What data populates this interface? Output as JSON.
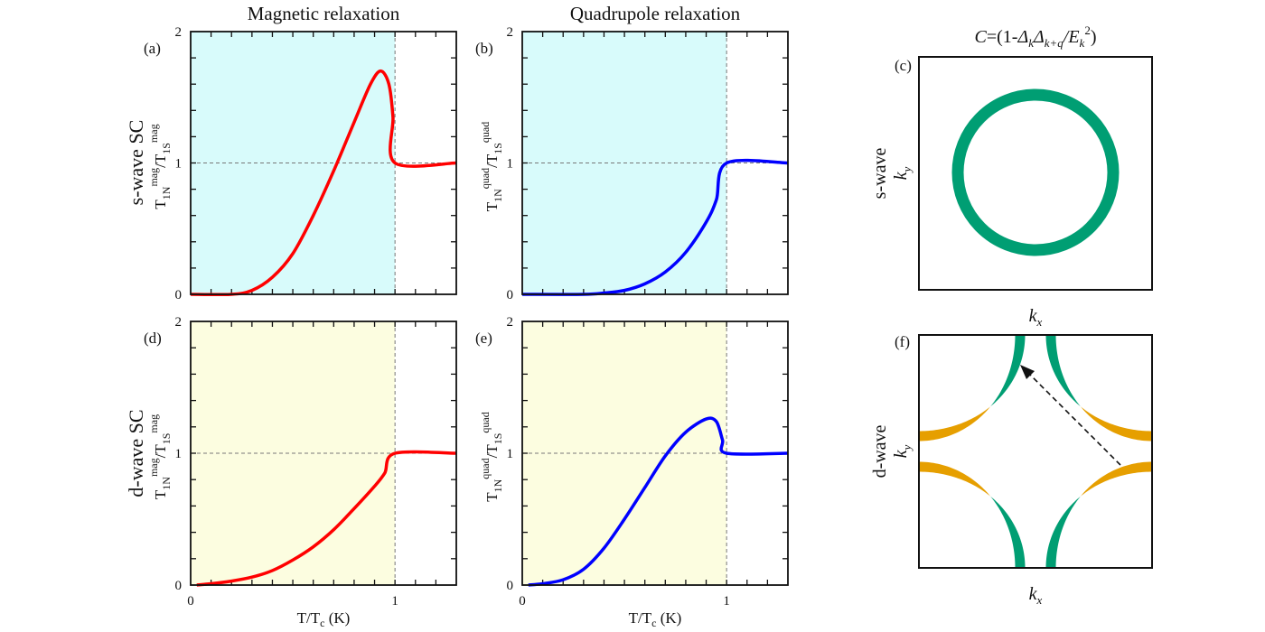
{
  "colors": {
    "s_bg": "#d8fbfb",
    "d_bg": "#fcfde0",
    "red": "#ff0000",
    "blue": "#0000ff",
    "green": "#009e73",
    "orange": "#e69f00"
  },
  "column_titles": [
    "Magnetic relaxation",
    "Quadrupole relaxation"
  ],
  "row_labels": [
    "s-wave SC",
    "d-wave SC"
  ],
  "right_title": {
    "c": "C",
    "eq": "=(1-",
    "d1": "Δ",
    "k1": "k",
    "d2": "Δ",
    "k2": "k+q",
    "sl": "/E",
    "k3": "k",
    "sq": "2",
    "close": ")"
  },
  "xlabel": {
    "a": "T/T",
    "sub": "c",
    "b": " (K)"
  },
  "right_panels": {
    "c": {
      "label": "(c)",
      "row": "s-wave",
      "ky": "k",
      "ky_sub": "y",
      "kx": "k",
      "kx_sub": "x"
    },
    "f": {
      "label": "(f)",
      "row": "d-wave",
      "ky": "k",
      "ky_sub": "y",
      "kx": "k",
      "kx_sub": "x"
    }
  },
  "chart_data": [
    {
      "id": "a",
      "type": "line",
      "label": "(a)",
      "xlim": [
        0,
        1.3
      ],
      "ylim": [
        0,
        2
      ],
      "xticks": [
        0,
        1
      ],
      "yticks": [
        0,
        1,
        2
      ],
      "shade_to_x": 1.0,
      "color": "red",
      "bg": "s_bg",
      "ylabel": {
        "base": "T",
        "sub1": "1N",
        "sup1": "mag",
        "mid": "/T",
        "sub2": "1S",
        "sup2": "mag"
      },
      "x": [
        0,
        0.2,
        0.3,
        0.4,
        0.5,
        0.6,
        0.7,
        0.8,
        0.88,
        0.93,
        0.97,
        0.99,
        1.0,
        1.3
      ],
      "y": [
        0,
        0.0,
        0.03,
        0.13,
        0.31,
        0.6,
        0.94,
        1.31,
        1.6,
        1.7,
        1.6,
        1.35,
        1.0,
        1.0
      ]
    },
    {
      "id": "b",
      "type": "line",
      "label": "(b)",
      "xlim": [
        0,
        1.3
      ],
      "ylim": [
        0,
        2
      ],
      "xticks": [
        0,
        1
      ],
      "yticks": [
        0,
        1,
        2
      ],
      "shade_to_x": 1.0,
      "color": "blue",
      "bg": "s_bg",
      "ylabel": {
        "base": "T",
        "sub1": "1N",
        "sup1": "quad",
        "mid": "/T",
        "sub2": "1S",
        "sup2": "quad"
      },
      "x": [
        0,
        0.3,
        0.4,
        0.5,
        0.6,
        0.7,
        0.8,
        0.9,
        0.95,
        1.0,
        1.3
      ],
      "y": [
        0,
        0.0,
        0.01,
        0.03,
        0.08,
        0.17,
        0.32,
        0.55,
        0.72,
        1.0,
        1.0
      ]
    },
    {
      "id": "d",
      "type": "line",
      "label": "(d)",
      "xlim": [
        0,
        1.3
      ],
      "ylim": [
        0,
        2
      ],
      "xticks": [
        0,
        1
      ],
      "yticks": [
        0,
        1,
        2
      ],
      "shade_to_x": 1.0,
      "color": "red",
      "bg": "d_bg",
      "ylabel": {
        "base": "T",
        "sub1": "1N",
        "sup1": "mag",
        "mid": "/T",
        "sub2": "1S",
        "sup2": "mag"
      },
      "x": [
        0.03,
        0.1,
        0.2,
        0.3,
        0.4,
        0.5,
        0.6,
        0.7,
        0.8,
        0.9,
        0.95,
        1.0,
        1.3
      ],
      "y": [
        0,
        0.01,
        0.03,
        0.06,
        0.11,
        0.19,
        0.29,
        0.42,
        0.58,
        0.75,
        0.85,
        1.0,
        1.0
      ]
    },
    {
      "id": "e",
      "type": "line",
      "label": "(e)",
      "xlim": [
        0,
        1.3
      ],
      "ylim": [
        0,
        2
      ],
      "xticks": [
        0,
        1
      ],
      "yticks": [
        0,
        1,
        2
      ],
      "shade_to_x": 1.0,
      "color": "blue",
      "bg": "d_bg",
      "ylabel": {
        "base": "T",
        "sub1": "1N",
        "sup1": "quad",
        "mid": "/T",
        "sub2": "1S",
        "sup2": "quad"
      },
      "x": [
        0.03,
        0.1,
        0.2,
        0.3,
        0.4,
        0.5,
        0.6,
        0.7,
        0.8,
        0.9,
        0.95,
        0.98,
        1.0,
        1.3
      ],
      "y": [
        0,
        0.01,
        0.04,
        0.12,
        0.28,
        0.5,
        0.74,
        0.98,
        1.16,
        1.26,
        1.24,
        1.1,
        1.0,
        1.0
      ]
    }
  ]
}
